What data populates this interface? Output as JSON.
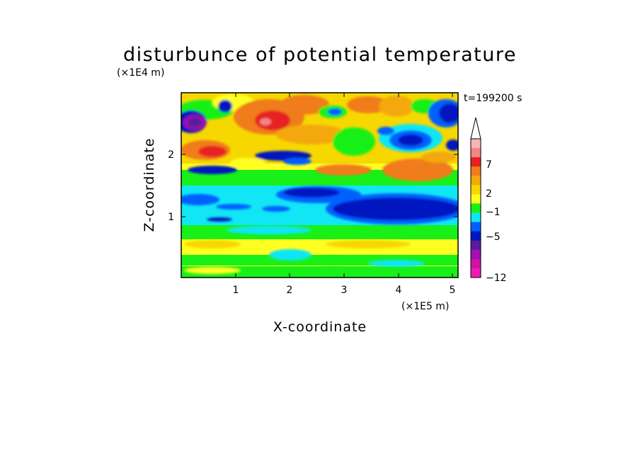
{
  "chart_data": {
    "type": "heatmap",
    "title": "disturbunce of potential temperature",
    "time_label": "t=199200 s",
    "xlabel": "X-coordinate",
    "ylabel": "Z-coordinate",
    "x_scale_label": "(×1E5 m)",
    "y_scale_label": "(×1E4 m)",
    "x_ticks": [
      "1",
      "2",
      "3",
      "4",
      "5"
    ],
    "y_ticks": [
      "1",
      "2"
    ],
    "xlim": [
      0,
      5.12
    ],
    "ylim": [
      0,
      2.9
    ],
    "colorbar": {
      "labels": [
        "7",
        "2",
        "−1",
        "−5",
        "−12"
      ],
      "colors": [
        "#f6b6b6",
        "#f28686",
        "#e62020",
        "#f07c1a",
        "#f3a90c",
        "#f6d800",
        "#ffff22",
        "#18f018",
        "#10e6f4",
        "#0060ff",
        "#0018c0",
        "#5a1a9e",
        "#a010b4",
        "#d012a6",
        "#ef1ab4"
      ]
    }
  }
}
